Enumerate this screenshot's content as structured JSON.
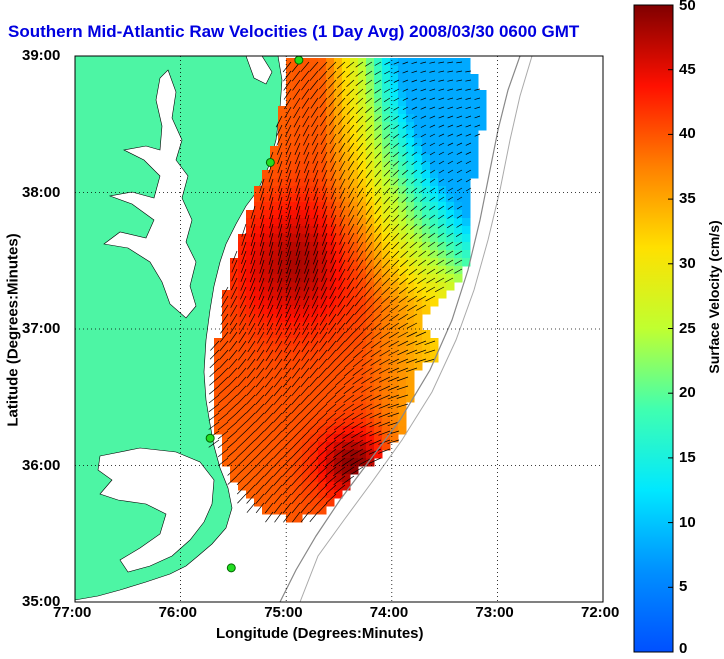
{
  "title": "Southern Mid-Atlantic Raw Velocities (1 Day Avg) 2008/03/30 0600 GMT",
  "map": {
    "xlabel": "Longitude (Degrees:Minutes)",
    "ylabel": "Latitude (Degrees:Minutes)",
    "x_ticks": [
      "77:00",
      "76:00",
      "75:00",
      "74:00",
      "73:00",
      "72:00"
    ],
    "y_ticks": [
      "39:00",
      "38:00",
      "37:00",
      "36:00",
      "35:00"
    ],
    "lon_range": [
      -77,
      -72
    ],
    "lat_range": [
      35,
      39
    ],
    "grid": "dotted",
    "land_color": "#4df5a4",
    "water_color": "#ffffff",
    "stations": [
      {
        "lon": -74.88,
        "lat": 38.97
      },
      {
        "lon": -75.15,
        "lat": 38.22
      },
      {
        "lon": -75.72,
        "lat": 36.2
      },
      {
        "lon": -75.52,
        "lat": 35.25
      }
    ]
  },
  "colorbar": {
    "label": "Surface Velocity (cm/s)",
    "min": 0,
    "max": 50,
    "tick_labels": [
      "50",
      "45",
      "40",
      "35",
      "30",
      "25",
      "20",
      "15",
      "10",
      "5",
      "0"
    ],
    "colormap": "jet"
  }
}
